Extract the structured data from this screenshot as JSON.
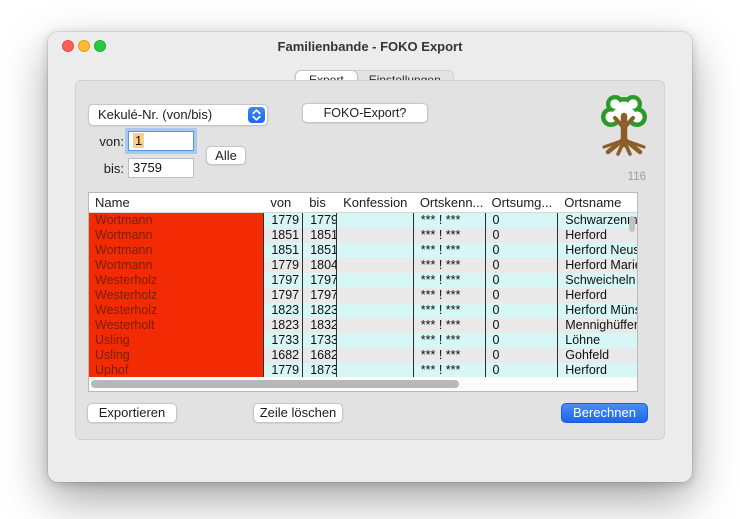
{
  "window": {
    "title": "Familienbande - FOKO Export",
    "tabs": [
      {
        "label": "Export",
        "selected": true
      },
      {
        "label": "Einstellungen",
        "selected": false
      }
    ]
  },
  "controls": {
    "range_mode_select": "Kekulé-Nr. (von/bis)",
    "foko_button": "FOKO-Export?",
    "von_label": "von:",
    "von_value": "1",
    "alle_button": "Alle",
    "bis_label": "bis:",
    "bis_value": "3759",
    "record_count": "116"
  },
  "table": {
    "columns": [
      "Name",
      "von",
      "bis",
      "Konfession",
      "Ortskenn...",
      "Ortsumg...",
      "Ortsname"
    ],
    "rows": [
      [
        "Wortmann",
        "1779",
        "1779",
        "",
        "*** ! ***",
        "0",
        "Schwarzenm."
      ],
      [
        "Wortmann",
        "1851",
        "1851",
        "",
        "*** ! ***",
        "0",
        "Herford"
      ],
      [
        "Wortmann",
        "1851",
        "1851",
        "",
        "*** ! ***",
        "0",
        "Herford Neus"
      ],
      [
        "Wortmann",
        "1779",
        "1804",
        "",
        "*** ! ***",
        "0",
        "Herford Marie"
      ],
      [
        "Westerholz",
        "1797",
        "1797",
        "",
        "*** ! ***",
        "0",
        "Schweicheln"
      ],
      [
        "Westerholz",
        "1797",
        "1797",
        "",
        "*** ! ***",
        "0",
        "Herford"
      ],
      [
        "Westerholz",
        "1823",
        "1823",
        "",
        "*** ! ***",
        "0",
        "Herford Müns"
      ],
      [
        "Westerholt",
        "1823",
        "1832",
        "",
        "*** ! ***",
        "0",
        "Mennighüffen"
      ],
      [
        "Usling",
        "1733",
        "1733",
        "",
        "*** ! ***",
        "0",
        "Löhne"
      ],
      [
        "Usling",
        "1682",
        "1682",
        "",
        "*** ! ***",
        "0",
        "Gohfeld"
      ],
      [
        "Uphof",
        "1779",
        "1873",
        "",
        "*** ! ***",
        "0",
        "Herford"
      ]
    ]
  },
  "footer": {
    "export_button": "Exportieren",
    "delete_row_button": "Zeile löschen",
    "calculate_button": "Berechnen"
  },
  "colors": {
    "name_column_red": "#f22b05",
    "name_text_dark_red": "#7a1f00",
    "row_stripe_cyan": "#d7f7f7",
    "row_stripe_gray": "#e9e9e9",
    "accent_blue": "#1b66ec",
    "logo_green": "#2a9b28",
    "logo_brown": "#8b5e2a"
  }
}
